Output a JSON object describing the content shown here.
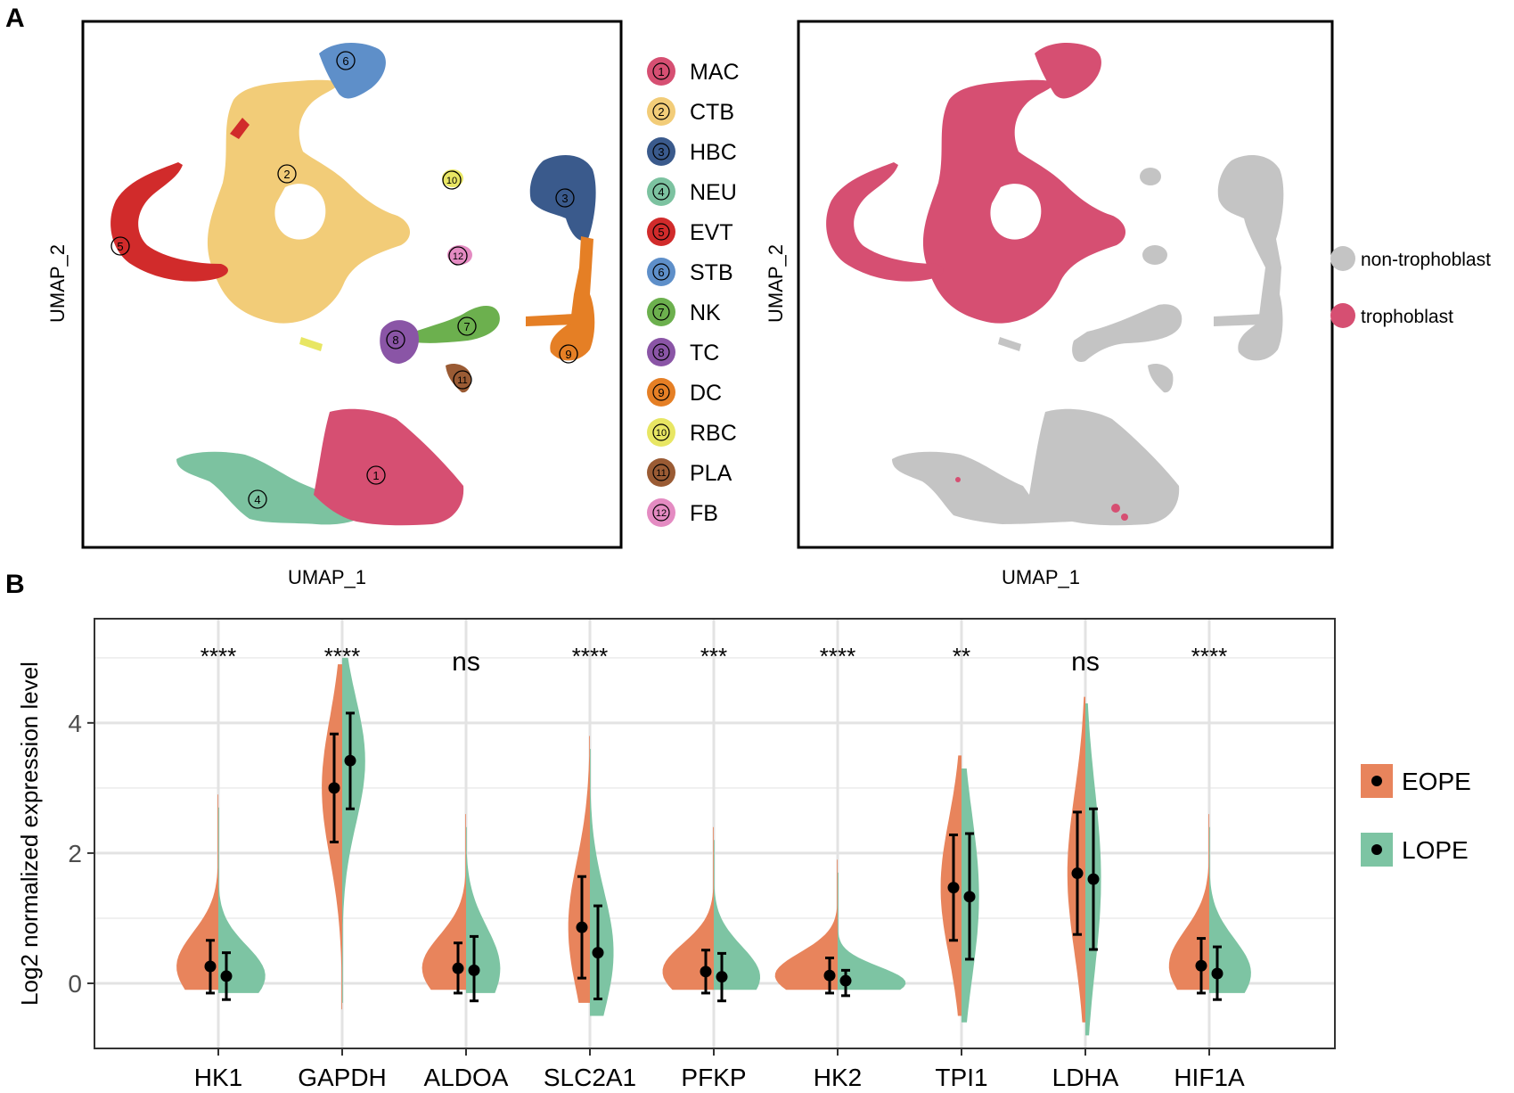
{
  "panel_a": {
    "label": "A",
    "left_plot": {
      "xlabel": "UMAP_1",
      "ylabel": "UMAP_2"
    },
    "right_plot": {
      "xlabel": "UMAP_1",
      "ylabel": "UMAP_2"
    },
    "clusters": [
      {
        "id": "1",
        "name": "MAC",
        "color": "#D64F72"
      },
      {
        "id": "2",
        "name": "CTB",
        "color": "#F2CC78"
      },
      {
        "id": "3",
        "name": "HBC",
        "color": "#3A5A8C"
      },
      {
        "id": "4",
        "name": "NEU",
        "color": "#7CC2A0"
      },
      {
        "id": "5",
        "name": "EVT",
        "color": "#D12B2B"
      },
      {
        "id": "6",
        "name": "STB",
        "color": "#5E8FC9"
      },
      {
        "id": "7",
        "name": "NK",
        "color": "#6CB04E"
      },
      {
        "id": "8",
        "name": "TC",
        "color": "#8A55A6"
      },
      {
        "id": "9",
        "name": "DC",
        "color": "#E57F25"
      },
      {
        "id": "10",
        "name": "RBC",
        "color": "#E8E663"
      },
      {
        "id": "11",
        "name": "PLA",
        "color": "#9A5B34"
      },
      {
        "id": "12",
        "name": "FB",
        "color": "#E48BC2"
      }
    ],
    "right_legend": [
      {
        "name": "non-trophoblast",
        "color": "#C4C4C4"
      },
      {
        "name": "trophoblast",
        "color": "#D64F72"
      }
    ]
  },
  "panel_b": {
    "label": "B",
    "ylabel": "Log2 normalized expression level",
    "legend": [
      {
        "name": "EOPE",
        "color": "#E8845C"
      },
      {
        "name": "LOPE",
        "color": "#7DC4A3"
      }
    ]
  },
  "chart_data": {
    "type": "violin",
    "ylabel": "Log2 normalized expression level",
    "ylim": [
      -1,
      5.6
    ],
    "yticks": [
      0,
      2,
      4
    ],
    "grid": true,
    "legend_position": "right",
    "categories": [
      "HK1",
      "GAPDH",
      "ALDOA",
      "SLC2A1",
      "PFKP",
      "HK2",
      "TPI1",
      "LDHA",
      "HIF1A"
    ],
    "significance": [
      "****",
      "****",
      "ns",
      "****",
      "***",
      "****",
      "**",
      "ns",
      "****"
    ],
    "series": [
      {
        "name": "EOPE",
        "mean": [
          0.26,
          3.0,
          0.23,
          0.86,
          0.18,
          0.12,
          1.47,
          1.69,
          0.27
        ],
        "lower": [
          -0.15,
          2.17,
          -0.15,
          0.08,
          -0.15,
          -0.15,
          0.66,
          0.75,
          -0.15
        ],
        "upper": [
          0.66,
          3.83,
          0.62,
          1.64,
          0.51,
          0.39,
          2.28,
          2.63,
          0.69
        ],
        "density_max": [
          2.9,
          4.9,
          2.6,
          3.8,
          2.4,
          1.9,
          3.5,
          4.4,
          2.6
        ],
        "density_min": [
          -0.1,
          -0.4,
          -0.1,
          -0.3,
          -0.1,
          -0.1,
          -0.5,
          -0.6,
          -0.1
        ]
      },
      {
        "name": "LOPE",
        "mean": [
          0.11,
          3.42,
          0.2,
          0.47,
          0.1,
          0.04,
          1.33,
          1.6,
          0.15
        ],
        "lower": [
          -0.25,
          2.68,
          -0.27,
          -0.24,
          -0.27,
          -0.19,
          0.37,
          0.52,
          -0.25
        ],
        "upper": [
          0.47,
          4.15,
          0.72,
          1.19,
          0.46,
          0.2,
          2.3,
          2.68,
          0.56
        ],
        "density_max": [
          2.7,
          5.0,
          2.4,
          3.6,
          2.2,
          1.7,
          3.3,
          4.3,
          2.4
        ],
        "density_min": [
          -0.15,
          -0.3,
          -0.15,
          -0.5,
          -0.1,
          -0.1,
          -0.6,
          -0.8,
          -0.15
        ]
      }
    ]
  }
}
